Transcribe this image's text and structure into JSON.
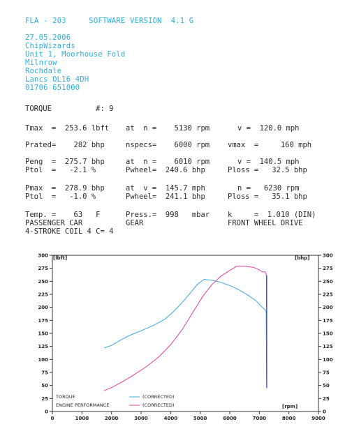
{
  "header": {
    "line1": "FLA - 203     SOFTWARE VERSION  4.1 G",
    "address": [
      "27.05.2006",
      "ChipWizards",
      "Unit 1, Moorhouse Fold",
      "Milnrow",
      "Rochdale",
      "Lancs OL16 4DH",
      "01706 651000"
    ]
  },
  "report": {
    "torque_line": "TORQUE          #: 9",
    "tmax_l": "Tmax  =  253.6 lbft",
    "tmax_m": "at  n =    5130 rpm",
    "tmax_r": "v =  120.0 mph",
    "prated_l": "Prated=    282 bhp",
    "prated_m": "nspecs=    6000 rpm",
    "prated_r": "vmax  =     160 mph",
    "peng_l": "Peng  =  275.7 bhp",
    "peng_m": "at  n =    6010 rpm",
    "peng_r": "v =  140.5 mph",
    "ptol1_l": "Ptol  =   -2.1 %",
    "ptol1_m": "Pwheel=  240.6 bhp",
    "ptol1_r": "Ploss =   32.5 bhp",
    "pmax_l": "Pmax  =  278.9 bhp",
    "pmax_m": "at  v =  145.7 mph",
    "pmax_r": "n =   6230 rpm",
    "ptol2_l": "Ptol  =   -1.0 %",
    "ptol2_m": "Pwheel=  241.1 bhp",
    "ptol2_r": "Ploss =   35.1 bhp",
    "temp_l": "Temp. =    63   F",
    "temp_m": "Press.=  998   mbar",
    "temp_r": "k     =  1.010 (DIN)",
    "car_l": "PASSENGER CAR",
    "car_m": "GEAR",
    "car_r": "FRONT WHEEL DRIVE",
    "engine_line": "4-STROKE COIL 4 C= 4"
  },
  "chart_data": {
    "type": "line",
    "ylabel_left": "[lbft]",
    "ylabel_right": "[bhp]",
    "xlabel": "[rpm]",
    "xlim": [
      0,
      9000
    ],
    "ylim": [
      0,
      300
    ],
    "x_ticks": [
      0,
      1000,
      2000,
      3000,
      4000,
      5000,
      6000,
      7000,
      8000,
      9000
    ],
    "y_ticks": [
      0,
      25,
      50,
      75,
      100,
      125,
      150,
      175,
      200,
      225,
      250,
      275,
      300
    ],
    "grid": false,
    "legend": [
      {
        "label": "TORQUE",
        "note": "(CORRECTED)",
        "color": "#3aa7dc"
      },
      {
        "label": "ENGINE PERFORMANCE",
        "note": "(CORRECTED)",
        "color": "#e0409a"
      }
    ],
    "series": [
      {
        "name": "TORQUE",
        "color": "#3aa7dc",
        "x": [
          1750,
          2000,
          2300,
          2600,
          3000,
          3400,
          3800,
          4100,
          4400,
          4700,
          4900,
          5130,
          5400,
          5700,
          6000,
          6300,
          6600,
          6900,
          7100,
          7200,
          7230,
          7240,
          7250
        ],
        "y": [
          122,
          127,
          137,
          146,
          155,
          165,
          177,
          192,
          210,
          230,
          244,
          253.6,
          252,
          248,
          242,
          234,
          224,
          212,
          200,
          195,
          190,
          120,
          45
        ]
      },
      {
        "name": "ENGINE PERFORMANCE",
        "color": "#e0409a",
        "x": [
          1750,
          2000,
          2400,
          2800,
          3200,
          3600,
          4000,
          4400,
          4800,
          5100,
          5400,
          5700,
          6000,
          6230,
          6500,
          6800,
          7000,
          7100,
          7200,
          7240,
          7250
        ],
        "y": [
          40,
          46,
          58,
          72,
          87,
          105,
          128,
          158,
          195,
          222,
          244,
          260,
          271,
          278.9,
          279,
          277,
          272,
          268,
          268,
          262,
          60
        ]
      }
    ]
  }
}
